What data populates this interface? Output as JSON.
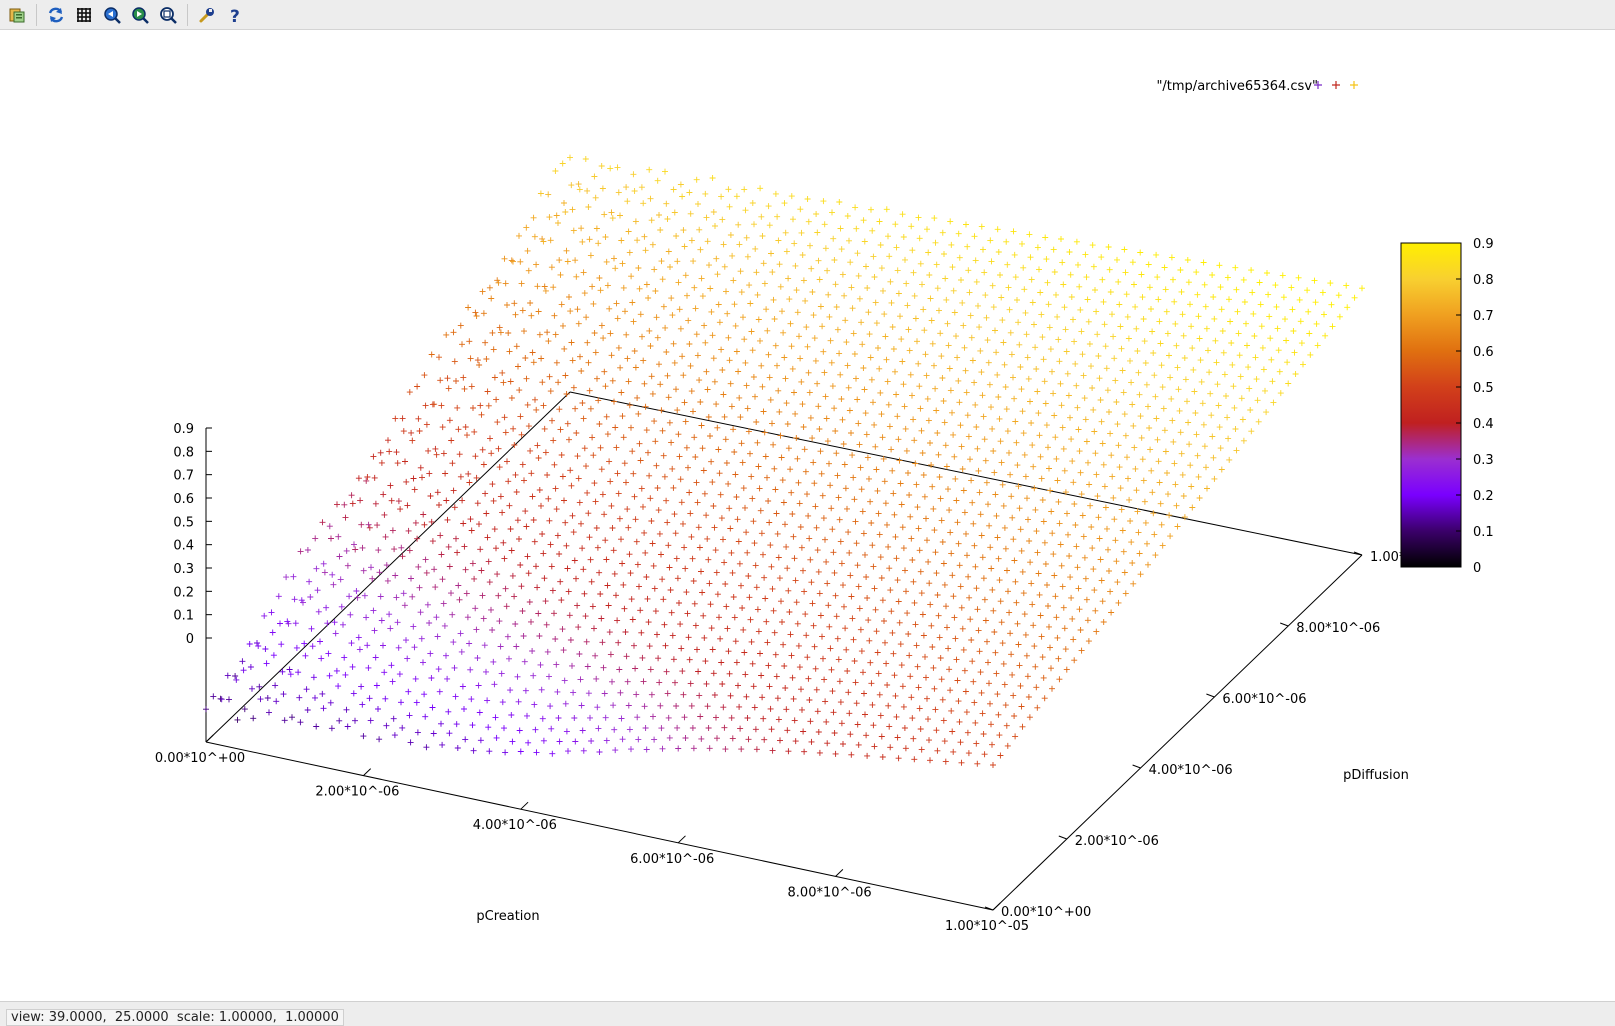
{
  "toolbar": {
    "buttons": [
      {
        "name": "export-button",
        "icon": "clipboard-icon"
      },
      {
        "name": "replot-button",
        "icon": "refresh-icon"
      },
      {
        "name": "grid-button",
        "icon": "grid-icon"
      },
      {
        "name": "zoom-previous-button",
        "icon": "zoom-back-icon"
      },
      {
        "name": "zoom-next-button",
        "icon": "zoom-forward-icon"
      },
      {
        "name": "autoscale-button",
        "icon": "zoom-fit-icon"
      },
      {
        "name": "config-button",
        "icon": "wrench-icon"
      },
      {
        "name": "help-button",
        "icon": "help-icon"
      }
    ]
  },
  "status": {
    "text": "view: 39.0000,  25.0000  scale: 1.00000,  1.00000"
  },
  "chart_data": {
    "type": "scatter3d",
    "title": "",
    "legend": {
      "label": "\"/tmp/archive65364.csv\"",
      "placement": "top-right",
      "sample_colors": [
        "#7a2bc8",
        "#c0281e",
        "#f5c318"
      ]
    },
    "xlabel": "pCreation",
    "ylabel": "pDiffusion",
    "zlabel": "",
    "xlim": [
      0,
      1e-05
    ],
    "ylim": [
      0,
      1e-05
    ],
    "zlim": [
      0,
      0.9
    ],
    "x_ticks": [
      "0.00*10^+00",
      "2.00*10^-06",
      "4.00*10^-06",
      "6.00*10^-06",
      "8.00*10^-06",
      "1.00*10^-05"
    ],
    "y_ticks": [
      "0.00*10^+00",
      "2.00*10^-06",
      "4.00*10^-06",
      "6.00*10^-06",
      "8.00*10^-06",
      "1.00*10^-05"
    ],
    "z_ticks": [
      "0",
      "0.1",
      "0.2",
      "0.3",
      "0.4",
      "0.5",
      "0.6",
      "0.7",
      "0.8",
      "0.9"
    ],
    "colorbar": {
      "range": [
        0,
        0.9
      ],
      "ticks": [
        "0",
        "0.1",
        "0.2",
        "0.3",
        "0.4",
        "0.5",
        "0.6",
        "0.7",
        "0.8",
        "0.9"
      ],
      "palette": [
        "#000000",
        "#3b006a",
        "#7a00ff",
        "#9b2fd0",
        "#c02020",
        "#d2401a",
        "#e07010",
        "#f0a020",
        "#f8d030",
        "#ffef00"
      ]
    },
    "view": {
      "rot_x": 39,
      "rot_z": 25,
      "scale": 1,
      "scale_z": 1
    },
    "surface": {
      "description_formula": "z rises with pDiffusion; low values near small pDiffusion",
      "grid_n": 50,
      "z_corner_x0_y0": 0.12,
      "z_corner_x1_y0": 0.5,
      "z_corner_x0_y1": 0.8,
      "z_corner_x1_y1": 0.92
    }
  }
}
